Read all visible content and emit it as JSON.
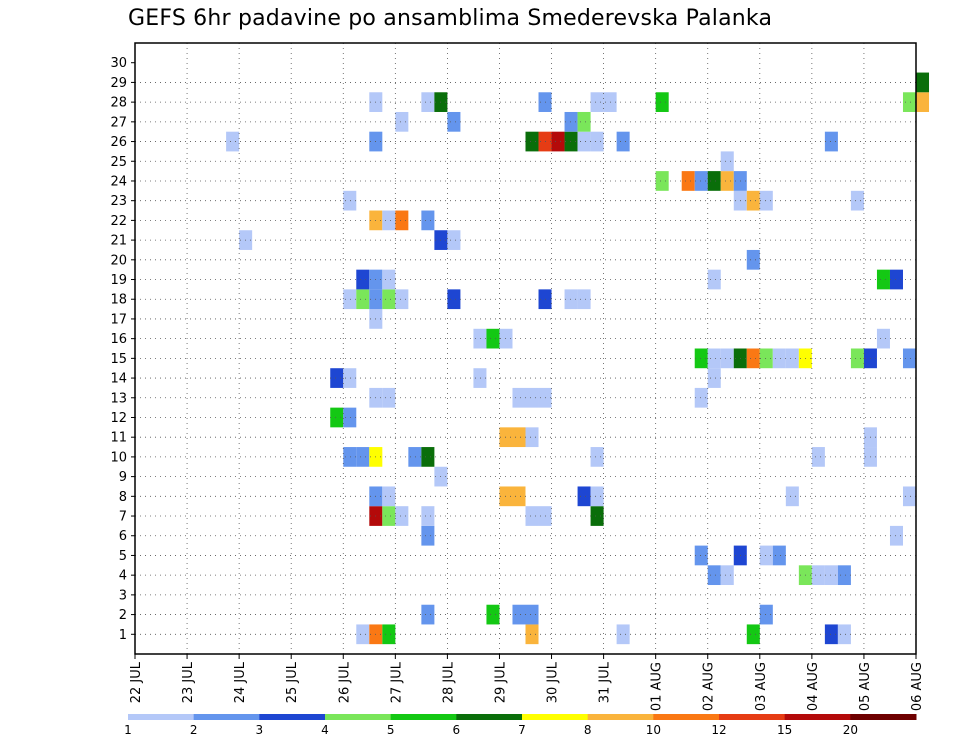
{
  "chart_data": {
    "type": "heatmap",
    "title": "GEFS 6hr padavine po ansamblima Smederevska Palanka",
    "x_tick_labels": [
      "22 JUL",
      "23 JUL",
      "24 JUL",
      "25 JUL",
      "26 JUL",
      "27 JUL",
      "28 JUL",
      "29 JUL",
      "30 JUL",
      "31 JUL",
      "01 AUG",
      "02 AUG",
      "03 AUG",
      "04 AUG",
      "05 AUG",
      "06 AUG"
    ],
    "y_tick_labels": [
      "1",
      "2",
      "3",
      "4",
      "5",
      "6",
      "7",
      "8",
      "9",
      "10",
      "11",
      "12",
      "13",
      "14",
      "15",
      "16",
      "17",
      "18",
      "19",
      "20",
      "21",
      "22",
      "23",
      "24",
      "25",
      "26",
      "27",
      "28",
      "29",
      "30"
    ],
    "x_range_days": [
      0,
      15
    ],
    "y_range": [
      1,
      30
    ],
    "grid": true,
    "colorbar": {
      "bounds": [
        "1",
        "2",
        "3",
        "4",
        "5",
        "6",
        "7",
        "8",
        "10",
        "12",
        "15",
        "20"
      ],
      "colors": [
        "#b4c8f8",
        "#6495ed",
        "#1e46d2",
        "#7ae65a",
        "#14c814",
        "#0a6e0a",
        "#ffff00",
        "#fab43c",
        "#fa7814",
        "#e63c14",
        "#b40a0a",
        "#6e0000"
      ]
    },
    "cells": [
      {
        "x": 4.25,
        "y": 1,
        "c": 1
      },
      {
        "x": 4.5,
        "y": 1,
        "c": 9
      },
      {
        "x": 4.75,
        "y": 1,
        "c": 5
      },
      {
        "x": 7.5,
        "y": 1,
        "c": 8
      },
      {
        "x": 9.25,
        "y": 1,
        "c": 1
      },
      {
        "x": 11.75,
        "y": 1,
        "c": 5
      },
      {
        "x": 13.25,
        "y": 1,
        "c": 3
      },
      {
        "x": 13.5,
        "y": 1,
        "c": 1
      },
      {
        "x": 5.5,
        "y": 2,
        "c": 2
      },
      {
        "x": 6.75,
        "y": 2,
        "c": 5
      },
      {
        "x": 7.25,
        "y": 2,
        "c": 2
      },
      {
        "x": 7.5,
        "y": 2,
        "c": 2
      },
      {
        "x": 12,
        "y": 2,
        "c": 2
      },
      {
        "x": 11,
        "y": 4,
        "c": 2
      },
      {
        "x": 11.25,
        "y": 4,
        "c": 1
      },
      {
        "x": 12.75,
        "y": 4,
        "c": 4
      },
      {
        "x": 13,
        "y": 4,
        "c": 1
      },
      {
        "x": 13.25,
        "y": 4,
        "c": 1
      },
      {
        "x": 13.5,
        "y": 4,
        "c": 2
      },
      {
        "x": 10.75,
        "y": 5,
        "c": 2
      },
      {
        "x": 11.5,
        "y": 5,
        "c": 3
      },
      {
        "x": 12,
        "y": 5,
        "c": 1
      },
      {
        "x": 12.25,
        "y": 5,
        "c": 2
      },
      {
        "x": 5.5,
        "y": 6,
        "c": 2
      },
      {
        "x": 14.5,
        "y": 6,
        "c": 1
      },
      {
        "x": 4.5,
        "y": 7,
        "c": 11
      },
      {
        "x": 4.75,
        "y": 7,
        "c": 4
      },
      {
        "x": 5,
        "y": 7,
        "c": 1
      },
      {
        "x": 5.5,
        "y": 7,
        "c": 1
      },
      {
        "x": 7.5,
        "y": 7,
        "c": 1
      },
      {
        "x": 7.75,
        "y": 7,
        "c": 1
      },
      {
        "x": 8.75,
        "y": 7,
        "c": 6
      },
      {
        "x": 4.5,
        "y": 8,
        "c": 2
      },
      {
        "x": 4.75,
        "y": 8,
        "c": 1
      },
      {
        "x": 7,
        "y": 8,
        "c": 8
      },
      {
        "x": 7.25,
        "y": 8,
        "c": 8
      },
      {
        "x": 8.5,
        "y": 8,
        "c": 3
      },
      {
        "x": 8.75,
        "y": 8,
        "c": 1
      },
      {
        "x": 12.5,
        "y": 8,
        "c": 1
      },
      {
        "x": 14.75,
        "y": 8,
        "c": 1
      },
      {
        "x": 5.75,
        "y": 9,
        "c": 1
      },
      {
        "x": 4,
        "y": 10,
        "c": 2
      },
      {
        "x": 4.25,
        "y": 10,
        "c": 2
      },
      {
        "x": 4.5,
        "y": 10,
        "c": 7
      },
      {
        "x": 5.25,
        "y": 10,
        "c": 2
      },
      {
        "x": 5.5,
        "y": 10,
        "c": 6
      },
      {
        "x": 8.75,
        "y": 10,
        "c": 1
      },
      {
        "x": 13,
        "y": 10,
        "c": 1
      },
      {
        "x": 14,
        "y": 10,
        "c": 1
      },
      {
        "x": 7,
        "y": 11,
        "c": 8
      },
      {
        "x": 7.25,
        "y": 11,
        "c": 8
      },
      {
        "x": 7.5,
        "y": 11,
        "c": 1
      },
      {
        "x": 14,
        "y": 11,
        "c": 1
      },
      {
        "x": 3.75,
        "y": 12,
        "c": 5
      },
      {
        "x": 4,
        "y": 12,
        "c": 2
      },
      {
        "x": 4.5,
        "y": 13,
        "c": 1
      },
      {
        "x": 4.75,
        "y": 13,
        "c": 1
      },
      {
        "x": 7.25,
        "y": 13,
        "c": 1
      },
      {
        "x": 7.5,
        "y": 13,
        "c": 1
      },
      {
        "x": 7.75,
        "y": 13,
        "c": 1
      },
      {
        "x": 10.75,
        "y": 13,
        "c": 1
      },
      {
        "x": 3.75,
        "y": 14,
        "c": 3
      },
      {
        "x": 4,
        "y": 14,
        "c": 1
      },
      {
        "x": 6.5,
        "y": 14,
        "c": 1
      },
      {
        "x": 11,
        "y": 14,
        "c": 1
      },
      {
        "x": 10.75,
        "y": 15,
        "c": 5
      },
      {
        "x": 11,
        "y": 15,
        "c": 1
      },
      {
        "x": 11.25,
        "y": 15,
        "c": 1
      },
      {
        "x": 11.5,
        "y": 15,
        "c": 6
      },
      {
        "x": 11.75,
        "y": 15,
        "c": 9
      },
      {
        "x": 12,
        "y": 15,
        "c": 4
      },
      {
        "x": 12.25,
        "y": 15,
        "c": 1
      },
      {
        "x": 12.5,
        "y": 15,
        "c": 1
      },
      {
        "x": 12.75,
        "y": 15,
        "c": 7
      },
      {
        "x": 13.75,
        "y": 15,
        "c": 4
      },
      {
        "x": 14,
        "y": 15,
        "c": 3
      },
      {
        "x": 14.75,
        "y": 15,
        "c": 2
      },
      {
        "x": 6.5,
        "y": 16,
        "c": 1
      },
      {
        "x": 6.75,
        "y": 16,
        "c": 5
      },
      {
        "x": 7,
        "y": 16,
        "c": 1
      },
      {
        "x": 14.25,
        "y": 16,
        "c": 1
      },
      {
        "x": 4.5,
        "y": 17,
        "c": 1
      },
      {
        "x": 4,
        "y": 18,
        "c": 1
      },
      {
        "x": 4.25,
        "y": 18,
        "c": 4
      },
      {
        "x": 4.5,
        "y": 18,
        "c": 2
      },
      {
        "x": 4.75,
        "y": 18,
        "c": 4
      },
      {
        "x": 5,
        "y": 18,
        "c": 1
      },
      {
        "x": 6,
        "y": 18,
        "c": 3
      },
      {
        "x": 7.75,
        "y": 18,
        "c": 3
      },
      {
        "x": 8.25,
        "y": 18,
        "c": 1
      },
      {
        "x": 8.5,
        "y": 18,
        "c": 1
      },
      {
        "x": 4.25,
        "y": 19,
        "c": 3
      },
      {
        "x": 4.5,
        "y": 19,
        "c": 2
      },
      {
        "x": 4.75,
        "y": 19,
        "c": 1
      },
      {
        "x": 11,
        "y": 19,
        "c": 1
      },
      {
        "x": 14.25,
        "y": 19,
        "c": 5
      },
      {
        "x": 14.5,
        "y": 19,
        "c": 3
      },
      {
        "x": 11.75,
        "y": 20,
        "c": 2
      },
      {
        "x": 2,
        "y": 21,
        "c": 1
      },
      {
        "x": 5.75,
        "y": 21,
        "c": 3
      },
      {
        "x": 6,
        "y": 21,
        "c": 1
      },
      {
        "x": 4.5,
        "y": 22,
        "c": 8
      },
      {
        "x": 4.75,
        "y": 22,
        "c": 1
      },
      {
        "x": 5,
        "y": 22,
        "c": 9
      },
      {
        "x": 5.5,
        "y": 22,
        "c": 2
      },
      {
        "x": 4,
        "y": 23,
        "c": 1
      },
      {
        "x": 11.5,
        "y": 23,
        "c": 1
      },
      {
        "x": 11.75,
        "y": 23,
        "c": 8
      },
      {
        "x": 12,
        "y": 23,
        "c": 1
      },
      {
        "x": 13.75,
        "y": 23,
        "c": 1
      },
      {
        "x": 10,
        "y": 24,
        "c": 4
      },
      {
        "x": 10.5,
        "y": 24,
        "c": 9
      },
      {
        "x": 10.75,
        "y": 24,
        "c": 2
      },
      {
        "x": 11,
        "y": 24,
        "c": 6
      },
      {
        "x": 11.25,
        "y": 24,
        "c": 8
      },
      {
        "x": 11.5,
        "y": 24,
        "c": 2
      },
      {
        "x": 11.25,
        "y": 25,
        "c": 1
      },
      {
        "x": 1.75,
        "y": 26,
        "c": 1
      },
      {
        "x": 4.5,
        "y": 26,
        "c": 2
      },
      {
        "x": 7.5,
        "y": 26,
        "c": 6
      },
      {
        "x": 7.75,
        "y": 26,
        "c": 10
      },
      {
        "x": 8,
        "y": 26,
        "c": 11
      },
      {
        "x": 8.25,
        "y": 26,
        "c": 6
      },
      {
        "x": 8.5,
        "y": 26,
        "c": 1
      },
      {
        "x": 8.75,
        "y": 26,
        "c": 1
      },
      {
        "x": 9.25,
        "y": 26,
        "c": 2
      },
      {
        "x": 13.25,
        "y": 26,
        "c": 2
      },
      {
        "x": 5,
        "y": 27,
        "c": 1
      },
      {
        "x": 6,
        "y": 27,
        "c": 2
      },
      {
        "x": 8.25,
        "y": 27,
        "c": 2
      },
      {
        "x": 8.5,
        "y": 27,
        "c": 4
      },
      {
        "x": 4.5,
        "y": 28,
        "c": 1
      },
      {
        "x": 5.5,
        "y": 28,
        "c": 1
      },
      {
        "x": 5.75,
        "y": 28,
        "c": 6
      },
      {
        "x": 7.75,
        "y": 28,
        "c": 2
      },
      {
        "x": 8.75,
        "y": 28,
        "c": 1
      },
      {
        "x": 9,
        "y": 28,
        "c": 1
      },
      {
        "x": 10,
        "y": 28,
        "c": 5
      },
      {
        "x": 14.75,
        "y": 28,
        "c": 4
      },
      {
        "x": 15,
        "y": 28,
        "c": 8
      },
      {
        "x": 15,
        "y": 29,
        "c": 6
      }
    ]
  }
}
